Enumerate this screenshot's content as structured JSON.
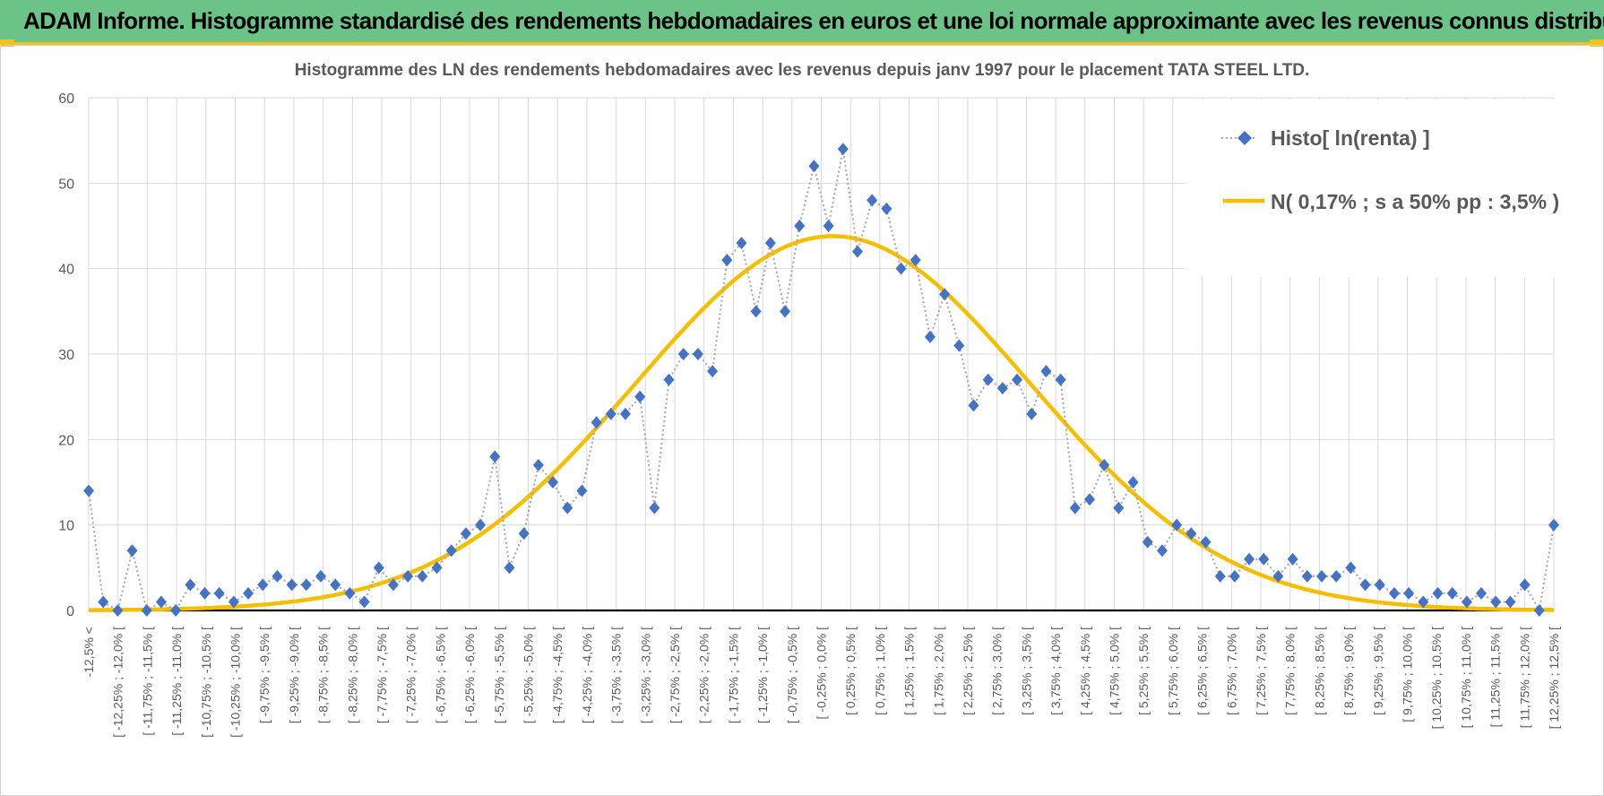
{
  "banner": {
    "title": "ADAM Informe. Histogramme standardisé des rendements hebdomadaires en euros et une loi normale approximante avec les revenus connus distribués"
  },
  "colors": {
    "banner_bg": "#6cc387",
    "accent": "#f2c11a",
    "histo_marker": "#4472c4",
    "histo_line": "#a6a6a6",
    "normal_line": "#f5be00",
    "grid": "#d9d9d9",
    "text": "#595959"
  },
  "chart_data": {
    "type": "line",
    "title": "Histogramme des LN des rendements hebdomadaires avec les revenus depuis janv 1997 pour le placement TATA STEEL LTD.",
    "xlabel": "",
    "ylabel": "",
    "ylim": [
      0,
      60
    ],
    "yticks": [
      0,
      10,
      20,
      30,
      40,
      50,
      60
    ],
    "grid": true,
    "legend_position": "top-right",
    "tick_labels": [
      "-12,5% <",
      "[ -12,25% ; -12,0% [",
      "[ -11,75% ; -11,5% [",
      "[ -11,25% ; -11,0% [",
      "[ -10,75% ; -10,5% [",
      "[ -10,25% ; -10,0% [",
      "[ -9,75% ; -9,5% [",
      "[ -9,25% ; -9,0% [",
      "[ -8,75% ; -8,5% [",
      "[ -8,25% ; -8,0% [",
      "[ -7,75% ; -7,5% [",
      "[ -7,25% ; -7,0% [",
      "[ -6,75% ; -6,5% [",
      "[ -6,25% ; -6,0% [",
      "[ -5,75% ; -5,5% [",
      "[ -5,25% ; -5,0% [",
      "[ -4,75% ; -4,5% [",
      "[ -4,25% ; -4,0% [",
      "[ -3,75% ; -3,5% [",
      "[ -3,25% ; -3,0% [",
      "[ -2,75% ; -2,5% [",
      "[ -2,25% ; -2,0% [",
      "[ -1,75% ; -1,5% [",
      "[ -1,25% ; -1,0% [",
      "[ -0,75% ; -0,5% [",
      "[ -0,25% ; 0,0% [",
      "[ 0,25% ; 0,5% [",
      "[ 0,75% ; 1,0% [",
      "[ 1,25% ; 1,5% [",
      "[ 1,75% ; 2,0% [",
      "[ 2,25% ; 2,5% [",
      "[ 2,75% ; 3,0% [",
      "[ 3,25% ; 3,5% [",
      "[ 3,75% ; 4,0% [",
      "[ 4,25% ; 4,5% [",
      "[ 4,75% ; 5,0% [",
      "[ 5,25% ; 5,5% [",
      "[ 5,75% ; 6,0% [",
      "[ 6,25% ; 6,5% [",
      "[ 6,75% ; 7,0% [",
      "[ 7,25% ; 7,5% [",
      "[ 7,75% ; 8,0% [",
      "[ 8,25% ; 8,5% [",
      "[ 8,75% ; 9,0% [",
      "[ 9,25% ; 9,5% [",
      "[ 9,75% ; 10,0% [",
      "[ 10,25% ; 10,5% [",
      "[ 10,75% ; 11,0% [",
      "[ 11,25% ; 11,5% [",
      "[ 11,75% ; 12,0% [",
      "[ 12,25% ; 12,5% ["
    ],
    "series": [
      {
        "name": "Histo[ ln(renta) ]",
        "kind": "dotted-line-diamond-markers",
        "values": [
          14,
          1,
          0,
          7,
          0,
          1,
          0,
          3,
          2,
          2,
          1,
          2,
          3,
          4,
          3,
          3,
          4,
          3,
          2,
          1,
          5,
          3,
          4,
          4,
          5,
          7,
          9,
          10,
          18,
          5,
          9,
          17,
          15,
          12,
          14,
          22,
          23,
          23,
          25,
          12,
          27,
          30,
          30,
          28,
          41,
          43,
          35,
          43,
          35,
          45,
          52,
          45,
          54,
          42,
          48,
          47,
          40,
          41,
          32,
          37,
          31,
          24,
          27,
          26,
          27,
          23,
          28,
          27,
          12,
          13,
          17,
          12,
          15,
          8,
          7,
          10,
          9,
          8,
          4,
          4,
          6,
          6,
          4,
          6,
          4,
          4,
          4,
          5,
          3,
          3,
          2,
          2,
          1,
          2,
          2,
          1,
          2,
          1,
          1,
          3,
          0,
          10
        ]
      },
      {
        "name": "N( 0,17% ; s a 50% pp : 3,5% )",
        "kind": "smooth-line",
        "peak": 43.8,
        "peak_index": 51.3,
        "spread_in_bins": 13.6
      }
    ]
  }
}
